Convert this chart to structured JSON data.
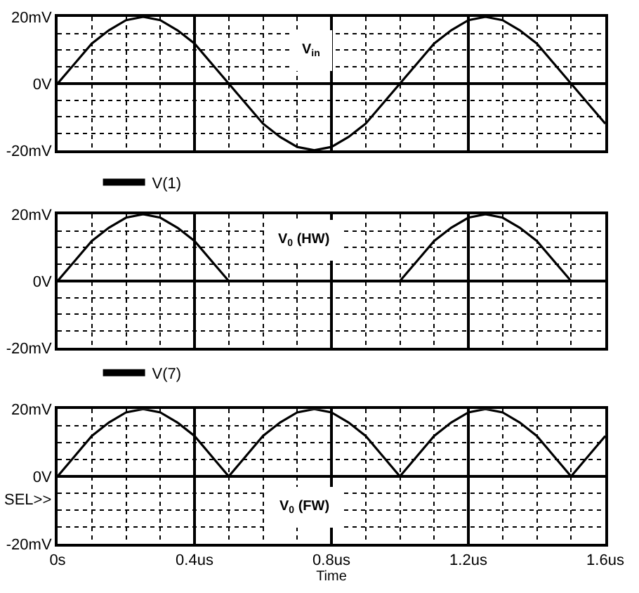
{
  "chart_data": [
    {
      "type": "line",
      "x": [
        0,
        0.05,
        0.1,
        0.15,
        0.2,
        0.25,
        0.3,
        0.35,
        0.4,
        0.45,
        0.5,
        0.55,
        0.6,
        0.65,
        0.7,
        0.75,
        0.8,
        0.85,
        0.9,
        0.95,
        1.0,
        1.05,
        1.1,
        1.15,
        1.2,
        1.25,
        1.3,
        1.35,
        1.4,
        1.45,
        1.5,
        1.55,
        1.6
      ],
      "series": [
        {
          "name": "V(1)",
          "color": "#000000",
          "values": [
            0,
            6,
            12,
            16,
            19,
            20,
            19,
            16,
            12,
            6,
            0,
            -6,
            -12,
            -16,
            -19,
            -20,
            -19,
            -16,
            -12,
            -6,
            0,
            6,
            12,
            16,
            19,
            20,
            19,
            16,
            12,
            6,
            0,
            -6,
            -12
          ]
        }
      ],
      "xlim": [
        0,
        1.6
      ],
      "xticks": [
        {
          "value": 0,
          "label": null
        },
        {
          "value": 0.4,
          "label": null
        },
        {
          "value": 0.8,
          "label": null
        },
        {
          "value": 1.2,
          "label": null
        },
        {
          "value": 1.6,
          "label": null
        }
      ],
      "ylim": [
        -20,
        20
      ],
      "yticks": [
        {
          "value": -20,
          "label": "-20mV"
        },
        {
          "value": 0,
          "label": "0V"
        },
        {
          "value": 20,
          "label": "20mV"
        }
      ],
      "grid": true,
      "legend": "bottom left",
      "tick_labels": "y",
      "annotations": [
        "V$_{in}$"
      ]
    },
    {
      "type": "line",
      "x": [
        0,
        0.05,
        0.1,
        0.15,
        0.2,
        0.25,
        0.3,
        0.35,
        0.4,
        0.45,
        0.5,
        0.55,
        0.6,
        0.65,
        0.7,
        0.75,
        0.8,
        0.85,
        0.9,
        0.95,
        1.0,
        1.05,
        1.1,
        1.15,
        1.2,
        1.25,
        1.3,
        1.35,
        1.4,
        1.45,
        1.5,
        1.55,
        1.6
      ],
      "series": [
        {
          "name": "V(7)",
          "color": "#000000",
          "values": [
            0,
            6,
            12,
            16,
            19,
            20,
            19,
            16,
            12,
            6,
            0,
            0,
            0,
            0,
            0,
            0,
            0,
            0,
            0,
            0,
            0,
            6,
            12,
            16,
            19,
            20,
            19,
            16,
            12,
            6,
            0,
            0,
            0
          ]
        }
      ],
      "xlim": [
        0,
        1.6
      ],
      "xticks": [
        {
          "value": 0,
          "label": null
        },
        {
          "value": 0.4,
          "label": null
        },
        {
          "value": 0.8,
          "label": null
        },
        {
          "value": 1.2,
          "label": null
        },
        {
          "value": 1.6,
          "label": null
        }
      ],
      "ylim": [
        -20,
        20
      ],
      "yticks": [
        {
          "value": -20,
          "label": "-20mV"
        },
        {
          "value": 0,
          "label": "0V"
        },
        {
          "value": 20,
          "label": "20mV"
        }
      ],
      "grid": true,
      "legend": "bottom left",
      "tick_labels": "y",
      "annotations": [
        "V$_{0}$ (HW)"
      ]
    },
    {
      "type": "line",
      "x": [
        0,
        0.05,
        0.1,
        0.15,
        0.2,
        0.25,
        0.3,
        0.35,
        0.4,
        0.45,
        0.5,
        0.55,
        0.6,
        0.65,
        0.7,
        0.75,
        0.8,
        0.85,
        0.9,
        0.95,
        1.0,
        1.05,
        1.1,
        1.15,
        1.2,
        1.25,
        1.3,
        1.35,
        1.4,
        1.45,
        1.5,
        1.55,
        1.6
      ],
      "series": [
        {
          "color": "#000000",
          "values": [
            0,
            6,
            12,
            16,
            19,
            20,
            19,
            16,
            12,
            6,
            0,
            6,
            12,
            16,
            19,
            20,
            19,
            16,
            12,
            6,
            0,
            6,
            12,
            16,
            19,
            20,
            19,
            16,
            12,
            6,
            0,
            6,
            12
          ]
        }
      ],
      "xlim": [
        0,
        1.6
      ],
      "xticks": [
        {
          "value": 0,
          "label": "0s"
        },
        {
          "value": 0.4,
          "label": "0.4us"
        },
        {
          "value": 0.8,
          "label": "0.8us"
        },
        {
          "value": 1.2,
          "label": "1.2us"
        },
        {
          "value": 1.6,
          "label": "1.6us"
        }
      ],
      "ylim": [
        -20,
        20
      ],
      "yticks": [
        {
          "value": -20,
          "label": "-20mV"
        },
        {
          "value": 0,
          "label": "0V"
        },
        {
          "value": 20,
          "label": "20mV"
        }
      ],
      "grid": true,
      "xlabel": "Time",
      "annotations": [
        "V$_{0}$ (FW)",
        "SEL>>"
      ]
    }
  ]
}
